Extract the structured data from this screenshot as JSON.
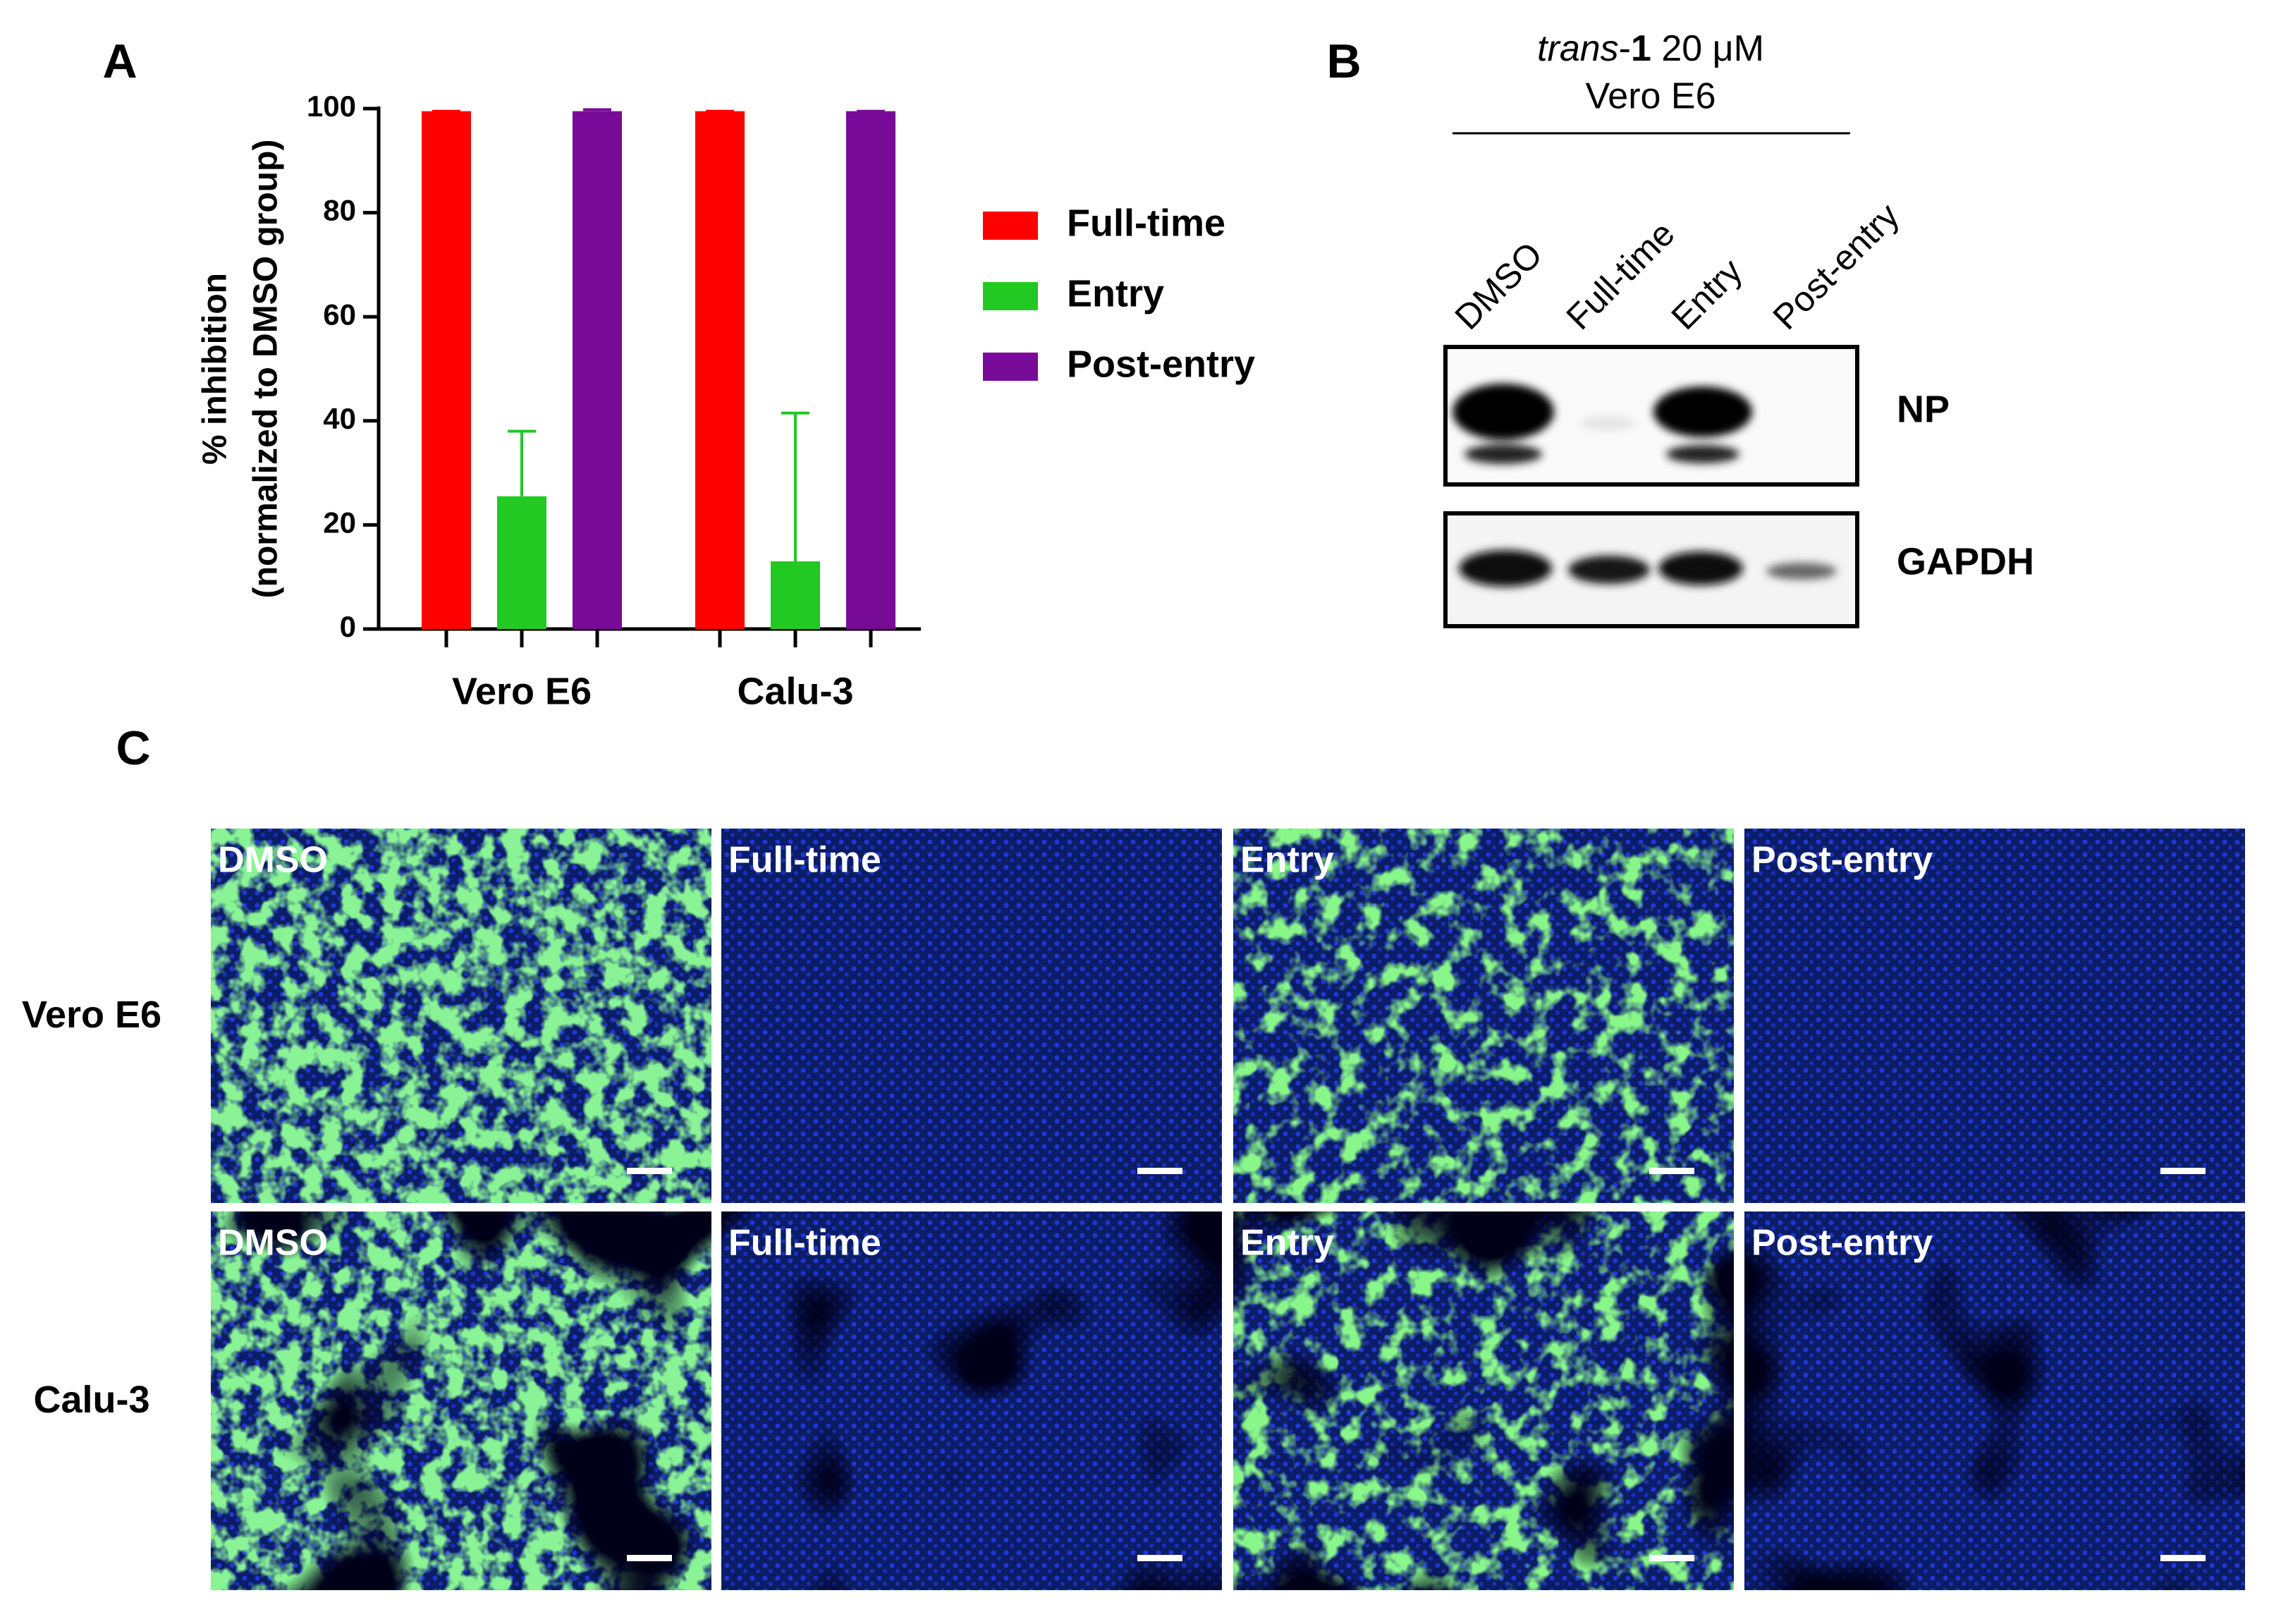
{
  "chart_data": {
    "type": "bar",
    "panel_label": "A",
    "ylabel": [
      "% inhibition",
      "(normalized to DMSO group)"
    ],
    "categories": [
      "Vero E6",
      "Calu-3"
    ],
    "series": [
      {
        "name": "Full-time",
        "color": "#ff0000",
        "values": [
          99.5,
          99.5
        ],
        "errors": [
          0,
          0
        ]
      },
      {
        "name": "Entry",
        "color": "#22c922",
        "values": [
          25.5,
          13
        ],
        "errors": [
          12.5,
          28.5
        ]
      },
      {
        "name": "Post-entry",
        "color": "#780a98",
        "values": [
          99.5,
          99.5
        ],
        "errors": [
          0.3,
          0
        ]
      }
    ],
    "ylim": [
      0,
      100
    ],
    "yticks": [
      0,
      20,
      40,
      60,
      80,
      100
    ],
    "legend": "right"
  },
  "blot": {
    "panel_label": "B",
    "treatment": [
      "trans",
      "-",
      "1",
      " 20 μM"
    ],
    "cell_line": "Vero E6",
    "lanes": [
      "DMSO",
      "Full-time",
      "Entry",
      "Post-entry"
    ],
    "proteins": [
      "NP",
      "GAPDH"
    ]
  },
  "imaging": {
    "panel_label": "C",
    "rows": [
      {
        "label": "Vero E6",
        "images": [
          "DMSO",
          "Full-time",
          "Entry",
          "Post-entry"
        ]
      },
      {
        "label": "Calu-3",
        "images": [
          "DMSO",
          "Full-time",
          "Entry",
          "Post-entry"
        ]
      }
    ]
  }
}
